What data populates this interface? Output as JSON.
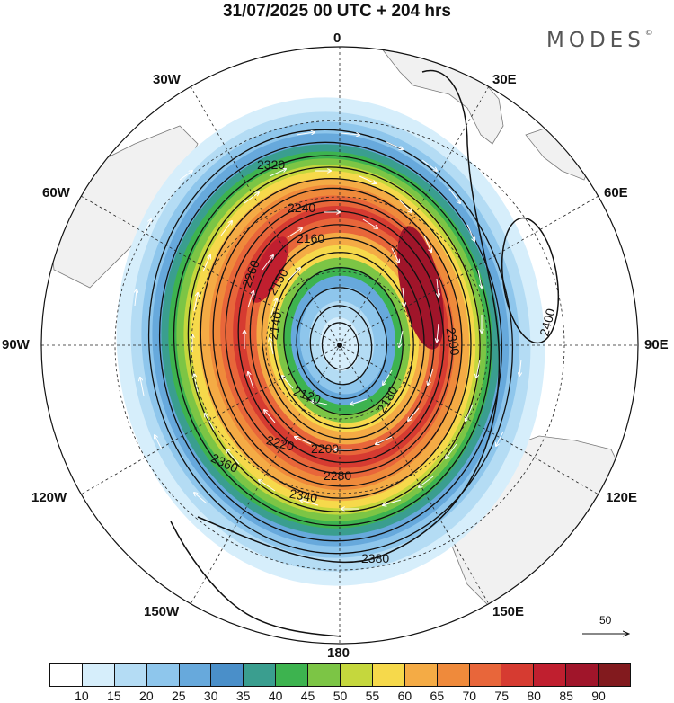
{
  "title": "31/07/2025  00 UTC  + 204 hrs",
  "brand": "MODES",
  "brand_mark": "©",
  "longitude_labels": {
    "lon_0": "0",
    "lon_30e": "30E",
    "lon_60e": "60E",
    "lon_90e": "90E",
    "lon_120e": "120E",
    "lon_150e": "150E",
    "lon_180": "180",
    "lon_150w": "150W",
    "lon_120w": "120W",
    "lon_90w": "90W",
    "lon_60w": "60W",
    "lon_30w": "30W"
  },
  "contour_labels": [
    "2120",
    "2140",
    "2150",
    "2160",
    "2180",
    "2200",
    "2220",
    "2240",
    "2260",
    "2280",
    "2300",
    "2320",
    "2340",
    "2360",
    "2380",
    "2400"
  ],
  "vector_reference": {
    "value": "50"
  },
  "colorbar": {
    "labels": [
      "10",
      "15",
      "20",
      "25",
      "30",
      "35",
      "40",
      "45",
      "50",
      "55",
      "60",
      "65",
      "70",
      "75",
      "80",
      "85",
      "90"
    ],
    "colors": [
      "#ffffff",
      "#d6eefb",
      "#b4dcf4",
      "#8ec6ec",
      "#67a9dc",
      "#4a8fc9",
      "#3a9e8f",
      "#3db34f",
      "#7cc545",
      "#c5d73d",
      "#f6d94b",
      "#f4ab45",
      "#ef8a3b",
      "#e8663a",
      "#d63b31",
      "#c01f2f",
      "#a0152a",
      "#821a1e"
    ]
  }
}
